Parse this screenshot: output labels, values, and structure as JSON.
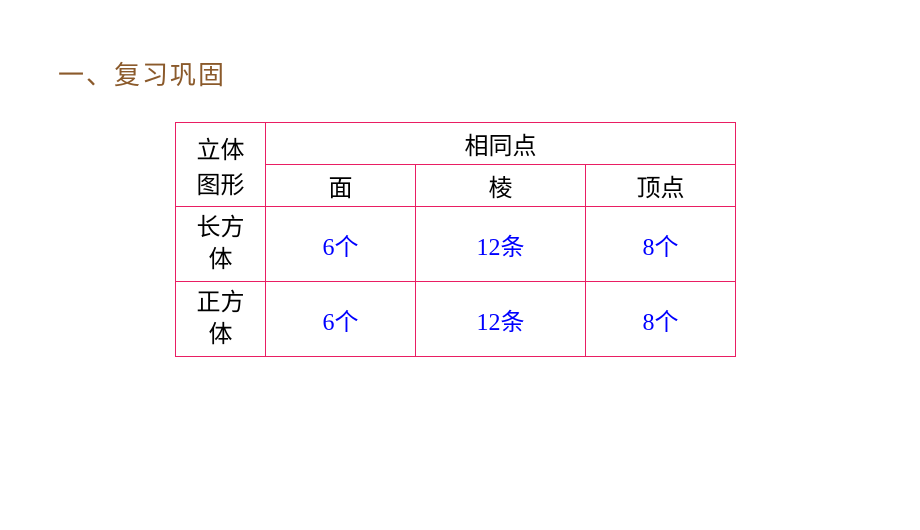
{
  "section_title": "一、复习巩固",
  "table": {
    "border_color": "#e91e63",
    "header_color": "#000000",
    "data_color": "#0000ff",
    "shape_header_line1": "立体",
    "shape_header_line2": "图形",
    "common_header": "相同点",
    "sub_headers": {
      "face": "面",
      "edge": "棱",
      "vertex": "顶点"
    },
    "rows": [
      {
        "shape_line1": "长方",
        "shape_line2": "体",
        "face": "6个",
        "edge": "12条",
        "vertex": "8个"
      },
      {
        "shape_line1": "正方",
        "shape_line2": "体",
        "face": "6个",
        "edge": "12条",
        "vertex": "8个"
      }
    ],
    "column_widths": {
      "shape": 90,
      "face": 150,
      "edge": 170,
      "vertex": 150
    },
    "font_size": 24,
    "title_color": "#8b5a2b"
  }
}
